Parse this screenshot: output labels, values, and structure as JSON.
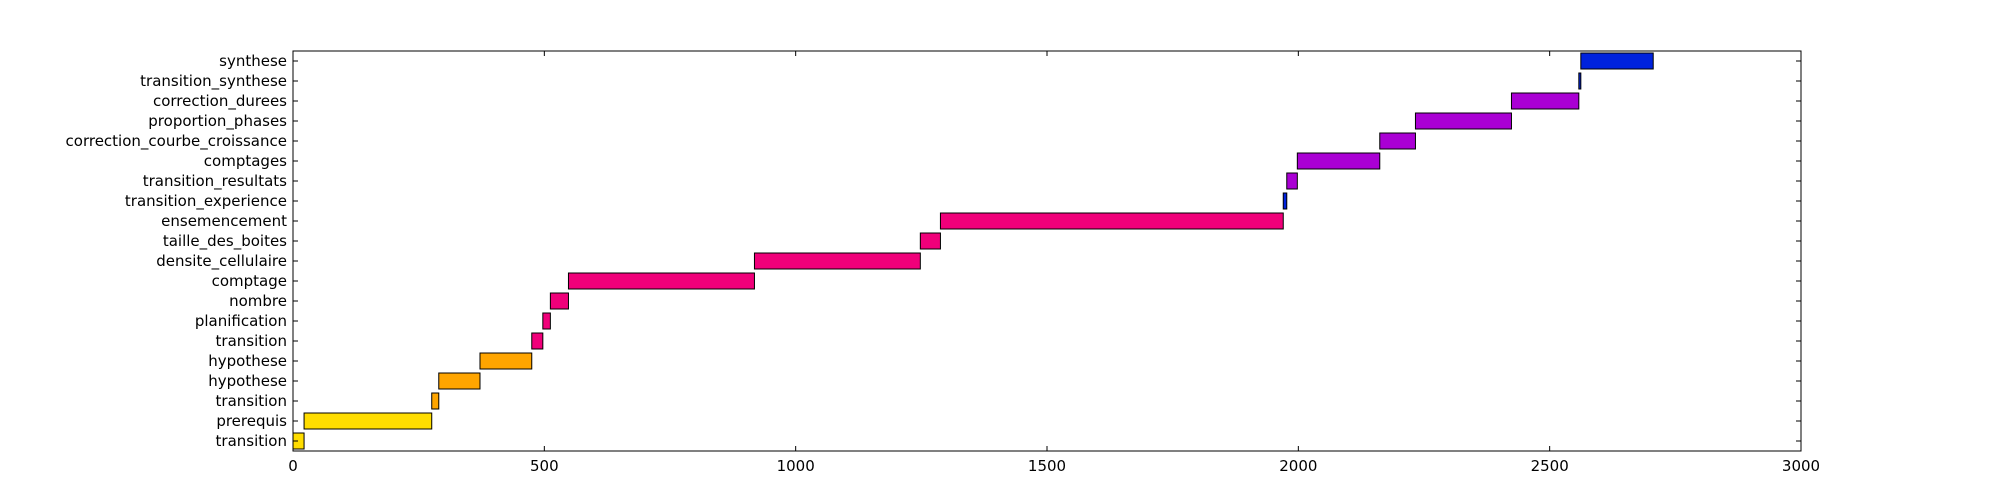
{
  "chart_data": {
    "type": "bar",
    "orientation": "horizontal",
    "title": "",
    "xlabel": "",
    "ylabel": "",
    "xlim": [
      0,
      3000
    ],
    "x_ticks": [
      0,
      500,
      1000,
      1500,
      2000,
      2500,
      3000
    ],
    "x_tick_labels": [
      "0",
      "500",
      "1000",
      "1500",
      "2000",
      "2500",
      "3000"
    ],
    "grid": false,
    "legend": "none",
    "categories": [
      "transition",
      "prerequis",
      "transition",
      "hypothese",
      "hypothese",
      "transition",
      "planification",
      "nombre",
      "comptage",
      "densite_cellulaire",
      "taille_des_boites",
      "ensemencement",
      "transition_experience",
      "transition_resultats",
      "comptages",
      "correction_courbe_croissance",
      "proportion_phases",
      "correction_durees",
      "transition_synthese",
      "synthese"
    ],
    "bars": [
      {
        "label": "transition",
        "start": 0,
        "end": 22,
        "color": "#ffdd00"
      },
      {
        "label": "prerequis",
        "start": 22,
        "end": 276,
        "color": "#ffdd00"
      },
      {
        "label": "transition",
        "start": 276,
        "end": 290,
        "color": "#ffa500"
      },
      {
        "label": "hypothese",
        "start": 290,
        "end": 372,
        "color": "#ffa500"
      },
      {
        "label": "hypothese",
        "start": 372,
        "end": 475,
        "color": "#ffa500"
      },
      {
        "label": "transition",
        "start": 475,
        "end": 497,
        "color": "#f0007a"
      },
      {
        "label": "planification",
        "start": 497,
        "end": 512,
        "color": "#f0007a"
      },
      {
        "label": "nombre",
        "start": 512,
        "end": 548,
        "color": "#f0007a"
      },
      {
        "label": "comptage",
        "start": 548,
        "end": 918,
        "color": "#f0007a"
      },
      {
        "label": "densite_cellulaire",
        "start": 918,
        "end": 1248,
        "color": "#f0007a"
      },
      {
        "label": "taille_des_boites",
        "start": 1248,
        "end": 1288,
        "color": "#f0007a"
      },
      {
        "label": "ensemencement",
        "start": 1288,
        "end": 1970,
        "color": "#f0007a"
      },
      {
        "label": "transition_experience",
        "start": 1970,
        "end": 1977,
        "color": "#0022dd"
      },
      {
        "label": "transition_resultats",
        "start": 1977,
        "end": 1998,
        "color": "#aa00d4"
      },
      {
        "label": "comptages",
        "start": 1998,
        "end": 2162,
        "color": "#aa00d4"
      },
      {
        "label": "correction_courbe_croissance",
        "start": 2162,
        "end": 2233,
        "color": "#aa00d4"
      },
      {
        "label": "proportion_phases",
        "start": 2233,
        "end": 2424,
        "color": "#aa00d4"
      },
      {
        "label": "correction_durees",
        "start": 2424,
        "end": 2558,
        "color": "#aa00d4"
      },
      {
        "label": "transition_synthese",
        "start": 2558,
        "end": 2562,
        "color": "#0022dd"
      },
      {
        "label": "synthese",
        "start": 2562,
        "end": 2706,
        "color": "#0022dd"
      }
    ]
  }
}
